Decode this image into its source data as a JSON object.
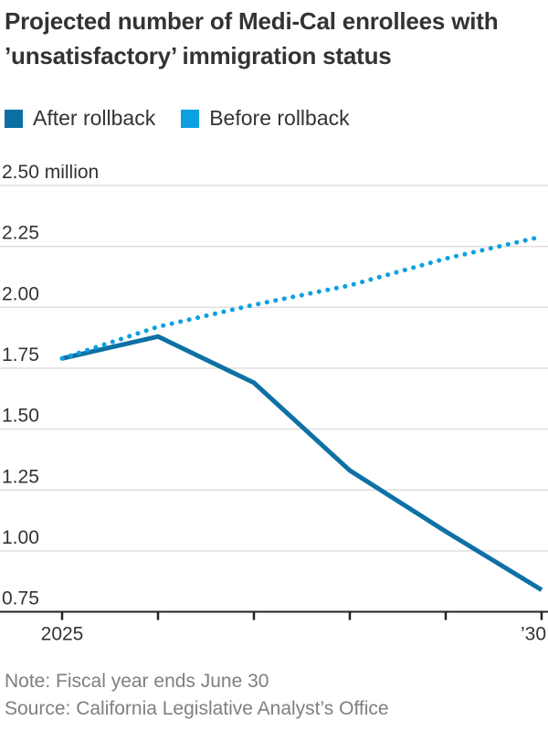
{
  "header": {
    "title": "Projected number of Medi-Cal enrollees with ’unsatisfactory’ immigration status"
  },
  "legend": {
    "items": [
      {
        "label": "After rollback",
        "color": "#0b6fa4"
      },
      {
        "label": "Before rollback",
        "color": "#0da0e0"
      }
    ]
  },
  "chart_data": {
    "type": "line",
    "title": "Projected number of Medi-Cal enrollees with ’unsatisfactory’ immigration status",
    "unit": "million",
    "x": [
      2025,
      2026,
      2027,
      2028,
      2029,
      2030
    ],
    "series": [
      {
        "name": "After rollback",
        "style": "solid",
        "color": "#0e71a5",
        "values": [
          1.79,
          1.88,
          1.69,
          1.33,
          1.08,
          0.84
        ]
      },
      {
        "name": "Before rollback",
        "style": "dotted",
        "color": "#0da0e0",
        "values": [
          1.79,
          1.92,
          2.01,
          2.09,
          2.2,
          2.29
        ]
      }
    ],
    "ylim": [
      0.75,
      2.5
    ],
    "xlim": [
      2025,
      2030
    ],
    "grid": true,
    "legend_position": "top",
    "y_ticks": [
      {
        "value": 2.5,
        "label": "2.50 million"
      },
      {
        "value": 2.25,
        "label": "2.25"
      },
      {
        "value": 2.0,
        "label": "2.00"
      },
      {
        "value": 1.75,
        "label": "1.75"
      },
      {
        "value": 1.5,
        "label": "1.50"
      },
      {
        "value": 1.25,
        "label": "1.25"
      },
      {
        "value": 1.0,
        "label": "1.00"
      },
      {
        "value": 0.75,
        "label": "0.75"
      }
    ],
    "x_tick_labels": [
      {
        "year": 2025,
        "label": "2025"
      },
      {
        "year": 2030,
        "label": "’30"
      }
    ]
  },
  "footer": {
    "note": "Note: Fiscal year ends June 30",
    "source": "Source: California Legislative Analyst’s Office"
  }
}
